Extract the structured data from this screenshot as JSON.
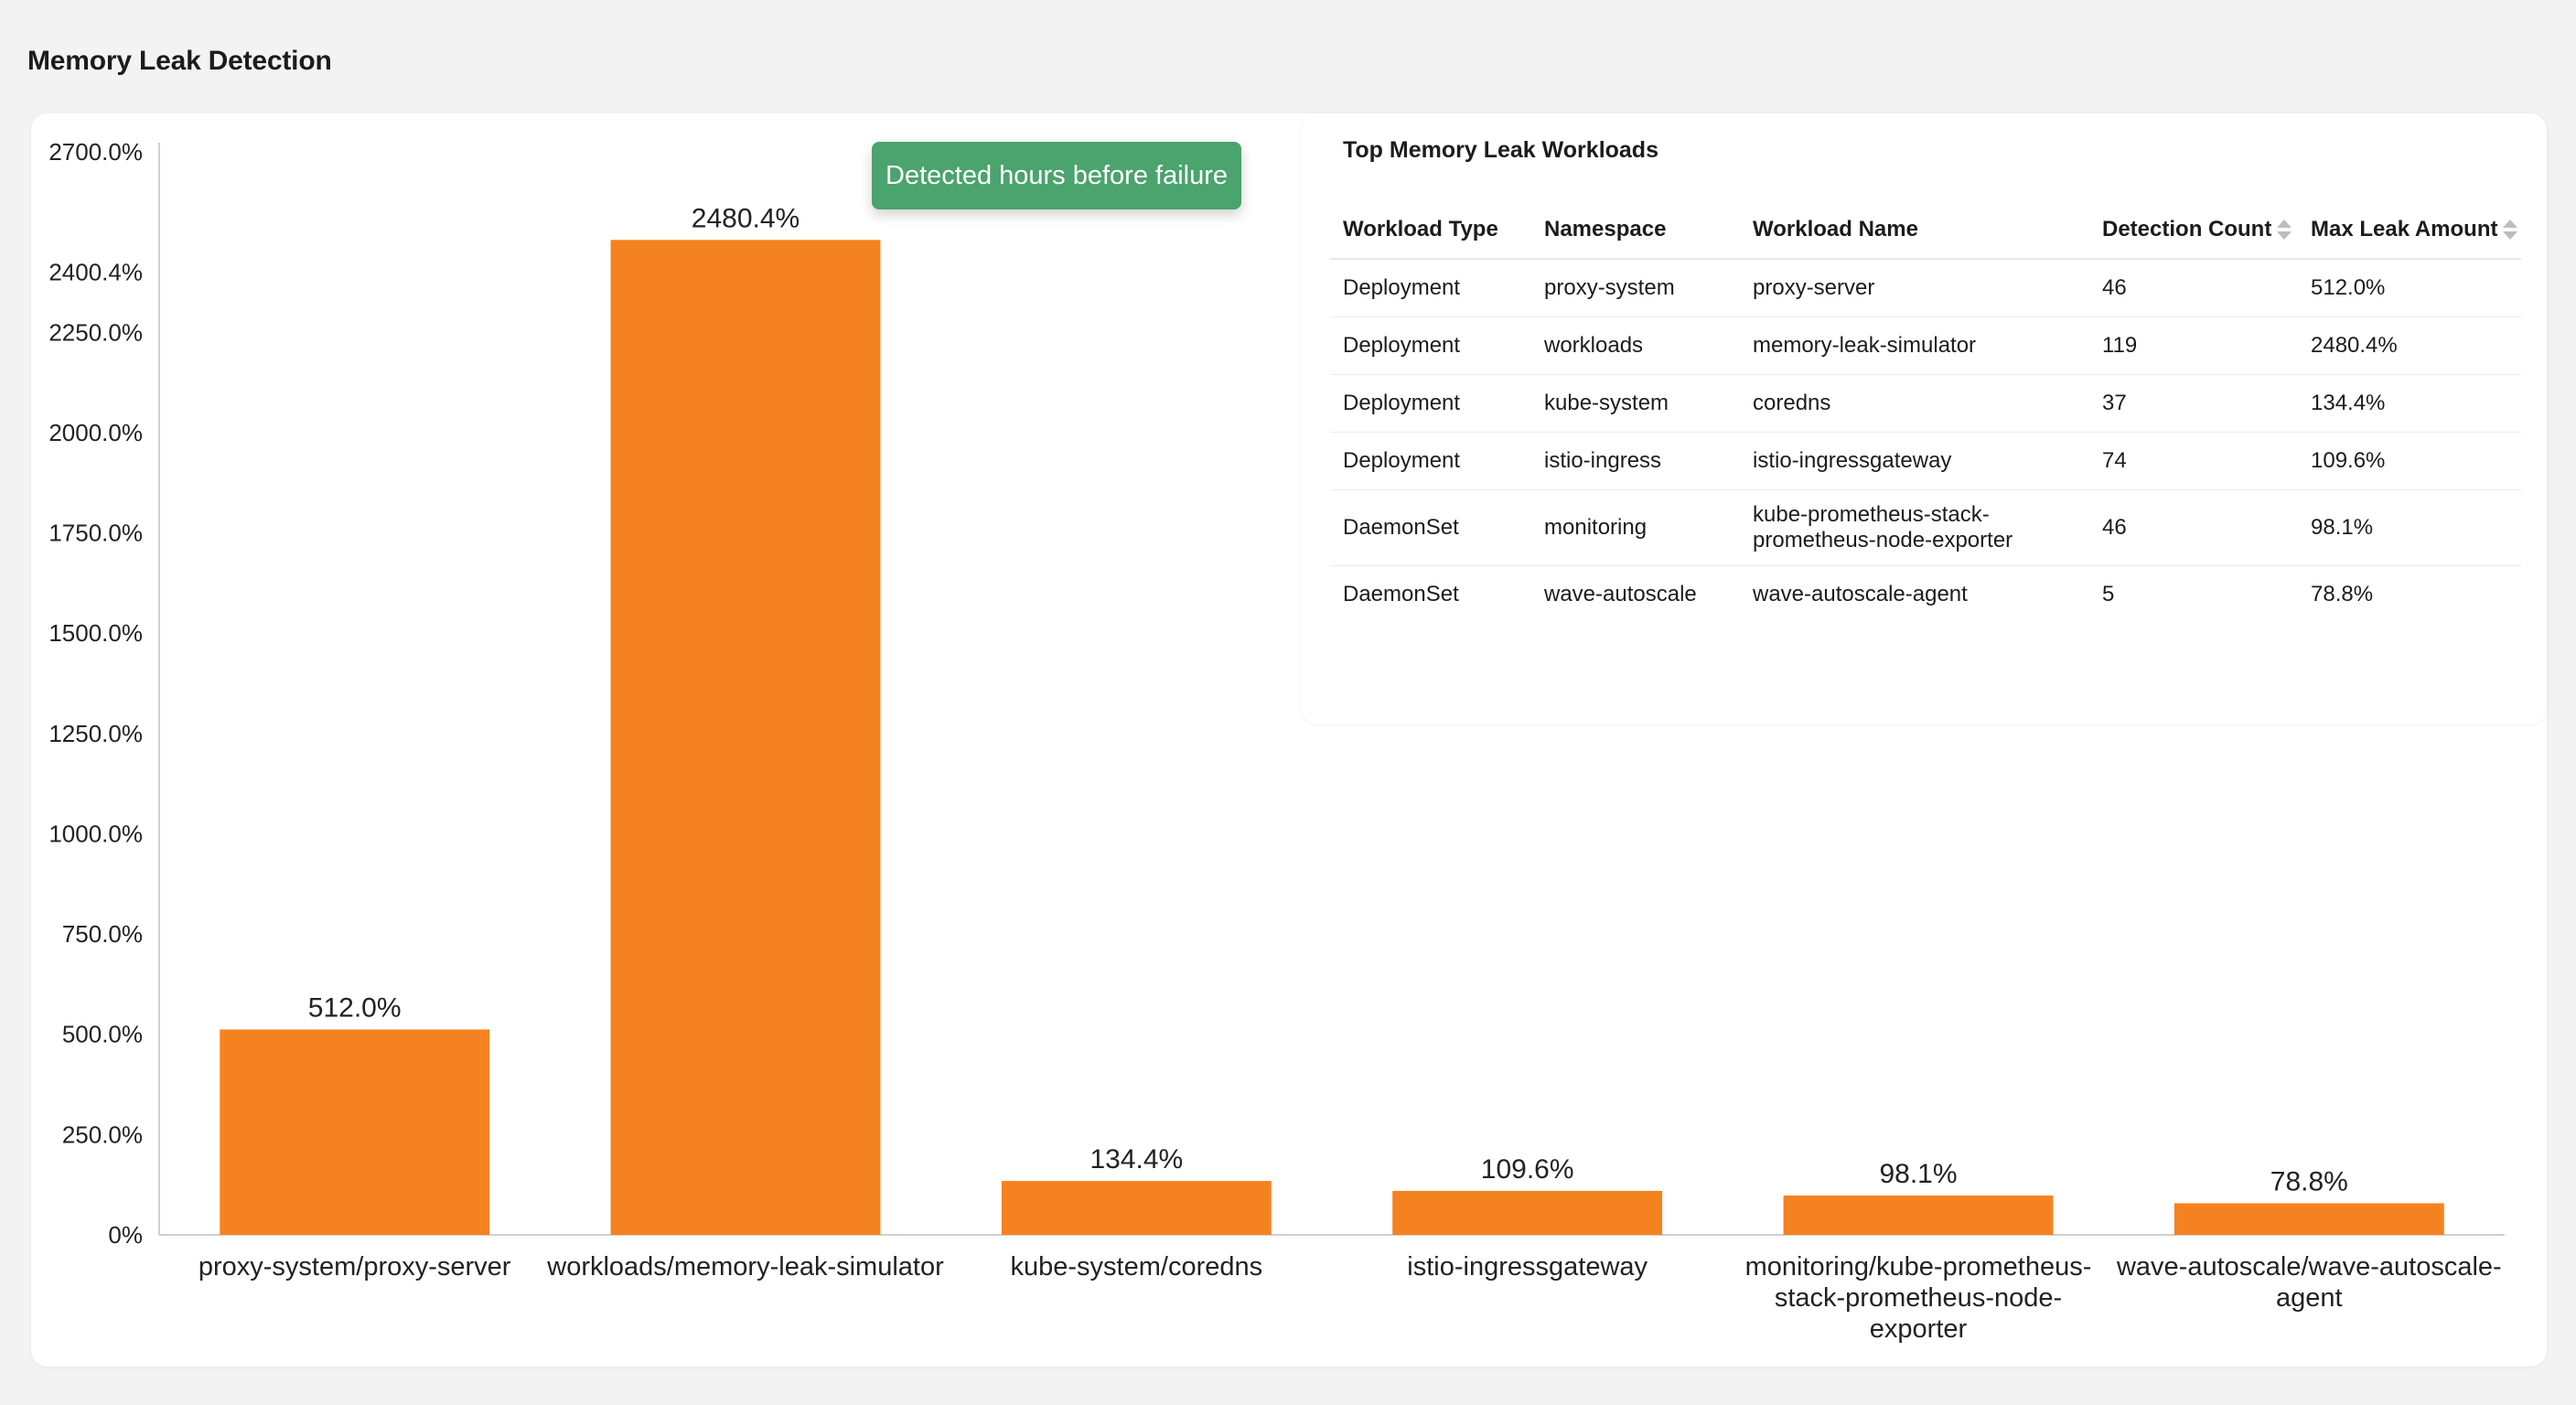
{
  "page": {
    "title": "Memory Leak Detection"
  },
  "colors": {
    "bar": "#f58220",
    "callout": "#4ba36d",
    "grid": "#e5e5e5"
  },
  "callout": {
    "text": "Detected hours before failure"
  },
  "chart_data": {
    "type": "bar",
    "categories": [
      "proxy-system/proxy-server",
      "workloads/memory-leak-simulator",
      "kube-system/coredns",
      "istio-ingressgateway",
      "monitoring/kube-prometheus-stack-prometheus-node-exporter",
      "wave-autoscale/wave-autoscale-agent"
    ],
    "category_label_lines": [
      [
        "proxy-system/proxy-server"
      ],
      [
        "workloads/memory-leak-simulator"
      ],
      [
        "kube-system/coredns"
      ],
      [
        "istio-ingressgateway"
      ],
      [
        "monitoring/kube-prometheus-",
        "stack-prometheus-node-",
        "exporter"
      ],
      [
        "wave-autoscale/wave-autoscale-",
        "agent"
      ]
    ],
    "values": [
      512.0,
      2480.4,
      134.4,
      109.6,
      98.1,
      78.8
    ],
    "value_labels": [
      "512.0%",
      "2480.4%",
      "134.4%",
      "109.6%",
      "98.1%",
      "78.8%"
    ],
    "y_ticks": [
      {
        "value": 0,
        "label": "0%"
      },
      {
        "value": 250,
        "label": "250.0%"
      },
      {
        "value": 500,
        "label": "500.0%"
      },
      {
        "value": 750,
        "label": "750.0%"
      },
      {
        "value": 1000,
        "label": "1000.0%"
      },
      {
        "value": 1250,
        "label": "1250.0%"
      },
      {
        "value": 1500,
        "label": "1500.0%"
      },
      {
        "value": 1750,
        "label": "1750.0%"
      },
      {
        "value": 2000,
        "label": "2000.0%"
      },
      {
        "value": 2250,
        "label": "2250.0%"
      },
      {
        "value": 2400.4,
        "label": "2400.4%"
      },
      {
        "value": 2700,
        "label": "2700.0%"
      }
    ],
    "ylim": [
      0,
      2700
    ],
    "title": "",
    "xlabel": "",
    "ylabel": "",
    "grid": false
  },
  "table": {
    "title": "Top Memory Leak Workloads",
    "columns": [
      "Workload Type",
      "Namespace",
      "Workload Name",
      "Detection Count",
      "Max Leak Amount"
    ],
    "rows": [
      {
        "type": "Deployment",
        "namespace": "proxy-system",
        "name": "proxy-server",
        "count": "46",
        "max": "512.0%"
      },
      {
        "type": "Deployment",
        "namespace": "workloads",
        "name": "memory-leak-simulator",
        "count": "119",
        "max": "2480.4%"
      },
      {
        "type": "Deployment",
        "namespace": "kube-system",
        "name": "coredns",
        "count": "37",
        "max": "134.4%"
      },
      {
        "type": "Deployment",
        "namespace": "istio-ingress",
        "name": "istio-ingressgateway",
        "count": "74",
        "max": "109.6%"
      },
      {
        "type": "DaemonSet",
        "namespace": "monitoring",
        "name": "kube-prometheus-stack-prometheus-node-exporter",
        "count": "46",
        "max": "98.1%"
      },
      {
        "type": "DaemonSet",
        "namespace": "wave-autoscale",
        "name": "wave-autoscale-agent",
        "count": "5",
        "max": "78.8%"
      }
    ]
  }
}
